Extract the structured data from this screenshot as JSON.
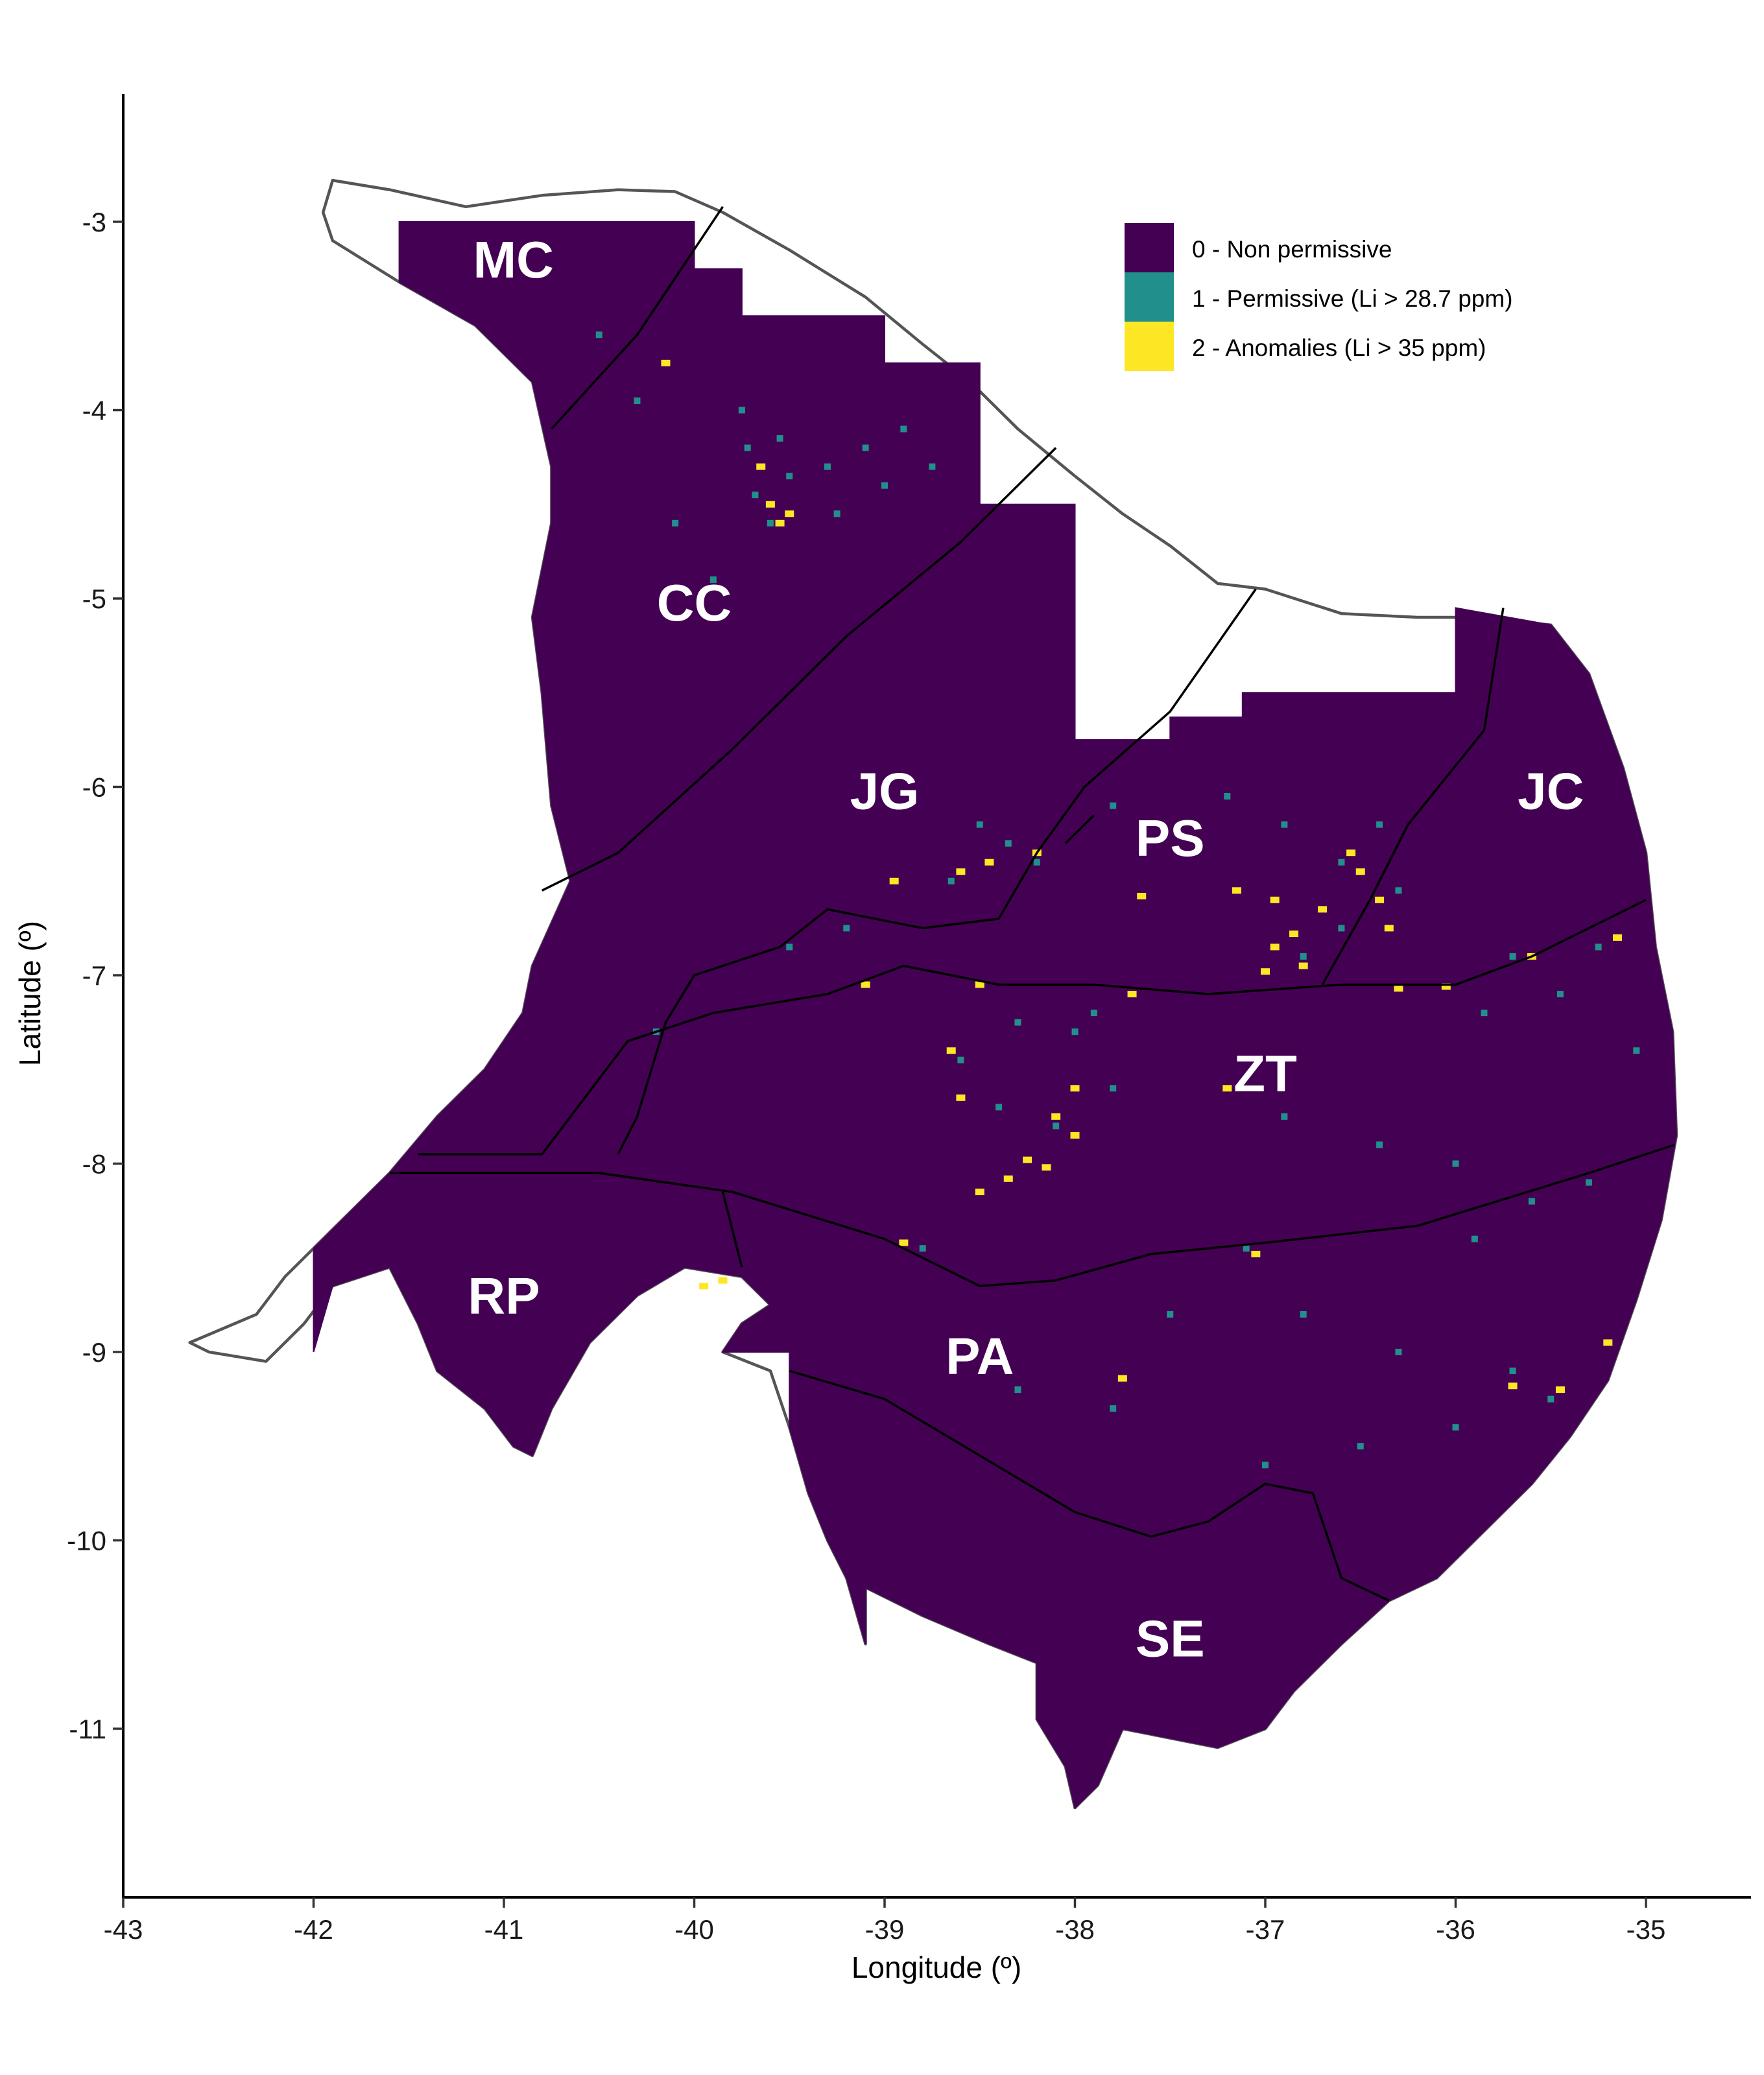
{
  "colors": {
    "non_permissive": "#440154",
    "permissive": "#21908C",
    "anomalies": "#FDE725",
    "coast_outline": "#555555",
    "boundary": "#000000"
  },
  "axes": {
    "x_title": "Longitude (º)",
    "y_title": "Latitude (º)",
    "x_ticks": [
      {
        "value": -43,
        "label": "-43"
      },
      {
        "value": -42,
        "label": "-42"
      },
      {
        "value": -41,
        "label": "-41"
      },
      {
        "value": -40,
        "label": "-40"
      },
      {
        "value": -39,
        "label": "-39"
      },
      {
        "value": -38,
        "label": "-38"
      },
      {
        "value": -37,
        "label": "-37"
      },
      {
        "value": -36,
        "label": "-36"
      },
      {
        "value": -35,
        "label": "-35"
      }
    ],
    "y_ticks": [
      {
        "value": -3,
        "label": "-3"
      },
      {
        "value": -4,
        "label": "-4"
      },
      {
        "value": -5,
        "label": "-5"
      },
      {
        "value": -6,
        "label": "-6"
      },
      {
        "value": -7,
        "label": "-7"
      },
      {
        "value": -8,
        "label": "-8"
      },
      {
        "value": -9,
        "label": "-9"
      },
      {
        "value": -10,
        "label": "-10"
      },
      {
        "value": -11,
        "label": "-11"
      }
    ],
    "x_range": [
      -43.1,
      -34.45
    ],
    "y_range": [
      -11.85,
      -2.35
    ]
  },
  "legend": {
    "placement": "top-right",
    "items": [
      {
        "label": "0 - Non permissive",
        "color": "#440154"
      },
      {
        "label": "1 - Permissive (Li > 28.7 ppm)",
        "color": "#21908C"
      },
      {
        "label": "2 - Anomalies (Li > 35 ppm)",
        "color": "#FDE725"
      }
    ]
  },
  "regions": [
    {
      "label": "MC",
      "lon": -40.95,
      "lat": -3.2
    },
    {
      "label": "CC",
      "lon": -40.0,
      "lat": -5.02
    },
    {
      "label": "JG",
      "lon": -39.0,
      "lat": -6.02
    },
    {
      "label": "PS",
      "lon": -37.5,
      "lat": -6.27
    },
    {
      "label": "JC",
      "lon": -35.5,
      "lat": -6.02
    },
    {
      "label": "ZT",
      "lon": -37.0,
      "lat": -7.52
    },
    {
      "label": "RP",
      "lon": -41.0,
      "lat": -8.7
    },
    {
      "label": "PA",
      "lon": -38.5,
      "lat": -9.02
    },
    {
      "label": "SE",
      "lon": -37.5,
      "lat": -10.52
    }
  ],
  "geometry": {
    "coast": [
      [
        -41.9,
        -2.78
      ],
      [
        -41.6,
        -2.83
      ],
      [
        -41.2,
        -2.92
      ],
      [
        -40.8,
        -2.86
      ],
      [
        -40.4,
        -2.83
      ],
      [
        -40.1,
        -2.84
      ],
      [
        -39.85,
        -2.95
      ],
      [
        -39.5,
        -3.15
      ],
      [
        -39.1,
        -3.4
      ],
      [
        -38.8,
        -3.65
      ],
      [
        -38.55,
        -3.85
      ],
      [
        -38.3,
        -4.1
      ],
      [
        -38.0,
        -4.35
      ],
      [
        -37.75,
        -4.55
      ],
      [
        -37.5,
        -4.72
      ],
      [
        -37.25,
        -4.92
      ],
      [
        -37.0,
        -4.95
      ],
      [
        -36.6,
        -5.08
      ],
      [
        -36.2,
        -5.1
      ],
      [
        -35.9,
        -5.1
      ],
      [
        -35.5,
        -5.14
      ],
      [
        -35.3,
        -5.4
      ],
      [
        -35.12,
        -5.9
      ],
      [
        -35.0,
        -6.35
      ],
      [
        -34.95,
        -6.85
      ],
      [
        -34.86,
        -7.3
      ],
      [
        -34.84,
        -7.85
      ],
      [
        -34.92,
        -8.3
      ],
      [
        -35.05,
        -8.72
      ],
      [
        -35.2,
        -9.15
      ],
      [
        -35.4,
        -9.45
      ],
      [
        -35.6,
        -9.7
      ],
      [
        -35.85,
        -9.95
      ],
      [
        -36.1,
        -10.2
      ],
      [
        -36.35,
        -10.32
      ],
      [
        -36.6,
        -10.55
      ],
      [
        -36.85,
        -10.8
      ],
      [
        -37.0,
        -11.0
      ],
      [
        -37.25,
        -11.1
      ],
      [
        -37.5,
        -11.05
      ],
      [
        -37.75,
        -11.0
      ],
      [
        -37.88,
        -11.3
      ],
      [
        -38.0,
        -11.42
      ],
      [
        -38.05,
        -11.2
      ],
      [
        -38.2,
        -10.95
      ],
      [
        -38.2,
        -10.65
      ],
      [
        -38.45,
        -10.55
      ],
      [
        -38.8,
        -10.4
      ],
      [
        -39.1,
        -10.25
      ],
      [
        -39.1,
        -10.55
      ],
      [
        -39.2,
        -10.2
      ],
      [
        -39.3,
        -10.0
      ],
      [
        -39.4,
        -9.75
      ],
      [
        -39.5,
        -9.4
      ],
      [
        -39.6,
        -9.1
      ],
      [
        -39.85,
        -9.0
      ],
      [
        -39.75,
        -8.85
      ],
      [
        -39.6,
        -8.75
      ],
      [
        -39.75,
        -8.6
      ],
      [
        -40.05,
        -8.55
      ],
      [
        -40.3,
        -8.7
      ],
      [
        -40.55,
        -8.95
      ],
      [
        -40.75,
        -9.3
      ],
      [
        -40.85,
        -9.55
      ],
      [
        -40.95,
        -9.5
      ],
      [
        -41.1,
        -9.3
      ],
      [
        -41.35,
        -9.1
      ],
      [
        -41.45,
        -8.85
      ],
      [
        -41.6,
        -8.55
      ],
      [
        -41.9,
        -8.65
      ],
      [
        -42.05,
        -8.85
      ],
      [
        -42.25,
        -9.05
      ],
      [
        -42.55,
        -9.0
      ],
      [
        -42.65,
        -8.95
      ],
      [
        -42.3,
        -8.8
      ],
      [
        -42.15,
        -8.6
      ],
      [
        -42.0,
        -8.45
      ],
      [
        -41.8,
        -8.25
      ],
      [
        -41.6,
        -8.05
      ],
      [
        -41.35,
        -7.75
      ],
      [
        -41.1,
        -7.5
      ],
      [
        -40.9,
        -7.2
      ],
      [
        -40.85,
        -6.95
      ],
      [
        -40.65,
        -6.5
      ],
      [
        -40.75,
        -6.1
      ],
      [
        -40.8,
        -5.5
      ],
      [
        -40.85,
        -5.1
      ],
      [
        -40.75,
        -4.6
      ],
      [
        -40.75,
        -4.3
      ],
      [
        -40.85,
        -3.85
      ],
      [
        -41.15,
        -3.55
      ],
      [
        -41.55,
        -3.32
      ],
      [
        -41.9,
        -3.1
      ],
      [
        -41.95,
        -2.95
      ]
    ],
    "mainland": [
      [
        -41.55,
        -3.0
      ],
      [
        -40.0,
        -3.0
      ],
      [
        -40.0,
        -3.25
      ],
      [
        -39.75,
        -3.25
      ],
      [
        -39.75,
        -3.5
      ],
      [
        -39.0,
        -3.5
      ],
      [
        -39.0,
        -3.75
      ],
      [
        -38.5,
        -3.75
      ],
      [
        -38.5,
        -4.5
      ],
      [
        -38.0,
        -4.5
      ],
      [
        -38.0,
        -5.75
      ],
      [
        -37.5,
        -5.75
      ],
      [
        -37.5,
        -5.63
      ],
      [
        -37.12,
        -5.63
      ],
      [
        -37.12,
        -5.5
      ],
      [
        -36.0,
        -5.5
      ],
      [
        -36.0,
        -5.05
      ],
      [
        -35.5,
        -5.14
      ],
      [
        -35.3,
        -5.4
      ],
      [
        -35.12,
        -5.9
      ],
      [
        -35.0,
        -6.35
      ],
      [
        -34.95,
        -6.85
      ],
      [
        -34.86,
        -7.3
      ],
      [
        -34.84,
        -7.85
      ],
      [
        -34.92,
        -8.3
      ],
      [
        -35.05,
        -8.72
      ],
      [
        -35.2,
        -9.15
      ],
      [
        -35.4,
        -9.45
      ],
      [
        -35.6,
        -9.7
      ],
      [
        -35.85,
        -9.95
      ],
      [
        -36.1,
        -10.2
      ],
      [
        -36.35,
        -10.32
      ],
      [
        -36.6,
        -10.55
      ],
      [
        -36.85,
        -10.8
      ],
      [
        -37.0,
        -11.0
      ],
      [
        -37.25,
        -11.1
      ],
      [
        -37.5,
        -11.05
      ],
      [
        -37.75,
        -11.0
      ],
      [
        -37.88,
        -11.3
      ],
      [
        -38.0,
        -11.42
      ],
      [
        -38.05,
        -11.2
      ],
      [
        -38.2,
        -10.95
      ],
      [
        -38.2,
        -10.65
      ],
      [
        -38.45,
        -10.55
      ],
      [
        -38.8,
        -10.4
      ],
      [
        -39.1,
        -10.25
      ],
      [
        -39.1,
        -10.55
      ],
      [
        -39.2,
        -10.2
      ],
      [
        -39.3,
        -10.0
      ],
      [
        -39.4,
        -9.75
      ],
      [
        -39.5,
        -9.4
      ],
      [
        -39.5,
        -9.0
      ],
      [
        -39.85,
        -9.0
      ],
      [
        -39.75,
        -8.85
      ],
      [
        -39.6,
        -8.75
      ],
      [
        -39.75,
        -8.6
      ],
      [
        -40.05,
        -8.55
      ],
      [
        -40.3,
        -8.7
      ],
      [
        -40.55,
        -8.95
      ],
      [
        -40.75,
        -9.3
      ],
      [
        -40.85,
        -9.55
      ],
      [
        -40.95,
        -9.5
      ],
      [
        -41.1,
        -9.3
      ],
      [
        -41.35,
        -9.1
      ],
      [
        -41.45,
        -8.85
      ],
      [
        -41.6,
        -8.55
      ],
      [
        -41.9,
        -8.65
      ],
      [
        -42.0,
        -9.0
      ],
      [
        -42.0,
        -8.45
      ],
      [
        -41.8,
        -8.25
      ],
      [
        -41.6,
        -8.05
      ],
      [
        -41.35,
        -7.75
      ],
      [
        -41.1,
        -7.5
      ],
      [
        -40.9,
        -7.2
      ],
      [
        -40.85,
        -6.95
      ],
      [
        -40.65,
        -6.5
      ],
      [
        -40.75,
        -6.1
      ],
      [
        -40.8,
        -5.5
      ],
      [
        -40.85,
        -5.1
      ],
      [
        -40.75,
        -4.6
      ],
      [
        -40.75,
        -4.3
      ],
      [
        -40.85,
        -3.85
      ],
      [
        -41.15,
        -3.55
      ],
      [
        -41.55,
        -3.32
      ]
    ],
    "boundaries": [
      [
        [
          -39.85,
          -2.92
        ],
        [
          -40.3,
          -3.6
        ],
        [
          -40.75,
          -4.1
        ]
      ],
      [
        [
          -38.1,
          -4.2
        ],
        [
          -38.6,
          -4.7
        ],
        [
          -39.2,
          -5.2
        ],
        [
          -39.8,
          -5.8
        ],
        [
          -40.4,
          -6.35
        ],
        [
          -40.8,
          -6.55
        ]
      ],
      [
        [
          -37.05,
          -4.95
        ],
        [
          -37.5,
          -5.6
        ],
        [
          -37.95,
          -6.0
        ],
        [
          -38.2,
          -6.35
        ],
        [
          -38.4,
          -6.7
        ],
        [
          -38.8,
          -6.75
        ],
        [
          -39.3,
          -6.65
        ],
        [
          -39.55,
          -6.85
        ],
        [
          -40.0,
          -7.0
        ],
        [
          -40.15,
          -7.25
        ],
        [
          -40.3,
          -7.75
        ],
        [
          -40.4,
          -7.95
        ]
      ],
      [
        [
          -41.45,
          -7.95
        ],
        [
          -40.8,
          -7.95
        ],
        [
          -40.35,
          -7.35
        ],
        [
          -39.9,
          -7.2
        ],
        [
          -39.3,
          -7.1
        ],
        [
          -38.9,
          -6.95
        ],
        [
          -38.4,
          -7.05
        ],
        [
          -37.9,
          -7.05
        ],
        [
          -37.3,
          -7.1
        ],
        [
          -36.6,
          -7.05
        ],
        [
          -36.0,
          -7.05
        ],
        [
          -35.6,
          -6.9
        ],
        [
          -35.0,
          -6.6
        ]
      ],
      [
        [
          -41.6,
          -8.05
        ],
        [
          -40.5,
          -8.05
        ],
        [
          -39.8,
          -8.15
        ],
        [
          -39.0,
          -8.4
        ],
        [
          -38.5,
          -8.65
        ],
        [
          -38.1,
          -8.62
        ],
        [
          -37.6,
          -8.48
        ],
        [
          -37.0,
          -8.42
        ],
        [
          -36.2,
          -8.33
        ],
        [
          -35.3,
          -8.05
        ],
        [
          -34.85,
          -7.9
        ]
      ],
      [
        [
          -39.85,
          -8.15
        ],
        [
          -39.75,
          -8.55
        ]
      ],
      [
        [
          -39.5,
          -9.1
        ],
        [
          -39.0,
          -9.25
        ],
        [
          -38.5,
          -9.55
        ],
        [
          -38.0,
          -9.85
        ],
        [
          -37.6,
          -9.98
        ],
        [
          -37.3,
          -9.9
        ],
        [
          -37.0,
          -9.7
        ],
        [
          -36.75,
          -9.75
        ],
        [
          -36.6,
          -10.2
        ],
        [
          -36.35,
          -10.32
        ]
      ],
      [
        [
          -35.75,
          -5.05
        ],
        [
          -35.85,
          -5.7
        ],
        [
          -36.25,
          -6.2
        ],
        [
          -36.45,
          -6.6
        ],
        [
          -36.7,
          -7.05
        ]
      ],
      [
        [
          -38.05,
          -6.3
        ],
        [
          -37.9,
          -6.15
        ]
      ]
    ],
    "clipped_notch": [
      [
        -40.8,
        -2.98
      ],
      [
        -40.6,
        -2.98
      ]
    ]
  },
  "cells": {
    "permissive": [
      [
        -39.75,
        -4.0
      ],
      [
        -39.72,
        -4.2
      ],
      [
        -39.68,
        -4.45
      ],
      [
        -39.6,
        -4.6
      ],
      [
        -39.55,
        -4.15
      ],
      [
        -39.5,
        -4.35
      ],
      [
        -39.3,
        -4.3
      ],
      [
        -39.25,
        -4.55
      ],
      [
        -39.1,
        -4.2
      ],
      [
        -39.0,
        -4.4
      ],
      [
        -38.9,
        -4.1
      ],
      [
        -38.75,
        -4.3
      ],
      [
        -40.5,
        -3.6
      ],
      [
        -40.3,
        -3.95
      ],
      [
        -40.1,
        -4.6
      ],
      [
        -39.9,
        -4.9
      ],
      [
        -38.5,
        -6.2
      ],
      [
        -38.35,
        -6.3
      ],
      [
        -38.2,
        -6.4
      ],
      [
        -38.65,
        -6.5
      ],
      [
        -37.8,
        -6.1
      ],
      [
        -37.2,
        -6.05
      ],
      [
        -36.9,
        -6.2
      ],
      [
        -36.6,
        -6.4
      ],
      [
        -36.4,
        -6.2
      ],
      [
        -36.3,
        -6.55
      ],
      [
        -36.6,
        -6.75
      ],
      [
        -36.8,
        -6.9
      ],
      [
        -35.7,
        -6.9
      ],
      [
        -35.45,
        -7.1
      ],
      [
        -35.85,
        -7.2
      ],
      [
        -38.3,
        -7.25
      ],
      [
        -38.0,
        -7.3
      ],
      [
        -37.9,
        -7.2
      ],
      [
        -38.6,
        -7.45
      ],
      [
        -38.4,
        -7.7
      ],
      [
        -37.8,
        -7.6
      ],
      [
        -38.1,
        -7.8
      ],
      [
        -36.9,
        -7.75
      ],
      [
        -36.4,
        -7.9
      ],
      [
        -36.0,
        -8.0
      ],
      [
        -35.6,
        -8.2
      ],
      [
        -35.3,
        -8.1
      ],
      [
        -35.9,
        -8.4
      ],
      [
        -37.1,
        -8.45
      ],
      [
        -36.8,
        -8.8
      ],
      [
        -37.5,
        -8.8
      ],
      [
        -36.3,
        -9.0
      ],
      [
        -35.7,
        -9.1
      ],
      [
        -35.5,
        -9.25
      ],
      [
        -36.0,
        -9.4
      ],
      [
        -36.5,
        -9.5
      ],
      [
        -37.0,
        -9.6
      ],
      [
        -37.8,
        -9.3
      ],
      [
        -38.3,
        -9.2
      ],
      [
        -38.8,
        -8.45
      ],
      [
        -39.2,
        -6.75
      ],
      [
        -39.5,
        -6.85
      ],
      [
        -40.2,
        -7.3
      ],
      [
        -35.25,
        -6.85
      ],
      [
        -35.05,
        -7.4
      ]
    ],
    "anomalies": [
      [
        -39.65,
        -4.3
      ],
      [
        -39.6,
        -4.5
      ],
      [
        -39.55,
        -4.6
      ],
      [
        -40.15,
        -3.75
      ],
      [
        -39.5,
        -4.55
      ],
      [
        -38.2,
        -6.35
      ],
      [
        -38.45,
        -6.4
      ],
      [
        -38.6,
        -6.45
      ],
      [
        -38.95,
        -6.5
      ],
      [
        -37.65,
        -6.58
      ],
      [
        -37.15,
        -6.55
      ],
      [
        -36.95,
        -6.6
      ],
      [
        -36.85,
        -6.78
      ],
      [
        -36.7,
        -6.65
      ],
      [
        -36.55,
        -6.35
      ],
      [
        -36.4,
        -6.6
      ],
      [
        -36.35,
        -6.75
      ],
      [
        -36.5,
        -6.45
      ],
      [
        -36.8,
        -6.95
      ],
      [
        -37.0,
        -6.98
      ],
      [
        -36.95,
        -6.85
      ],
      [
        -35.6,
        -6.9
      ],
      [
        -35.15,
        -6.8
      ],
      [
        -39.1,
        -7.05
      ],
      [
        -38.5,
        -7.05
      ],
      [
        -38.65,
        -7.4
      ],
      [
        -38.6,
        -7.65
      ],
      [
        -38.0,
        -7.6
      ],
      [
        -38.1,
        -7.75
      ],
      [
        -38.25,
        -7.98
      ],
      [
        -38.15,
        -8.02
      ],
      [
        -38.35,
        -8.08
      ],
      [
        -38.5,
        -8.15
      ],
      [
        -38.0,
        -7.85
      ],
      [
        -38.9,
        -8.42
      ],
      [
        -36.05,
        -7.06
      ],
      [
        -36.3,
        -7.07
      ],
      [
        -37.7,
        -7.1
      ],
      [
        -37.2,
        -7.6
      ],
      [
        -37.05,
        -8.48
      ],
      [
        -35.7,
        -9.18
      ],
      [
        -35.45,
        -9.2
      ],
      [
        -37.75,
        -9.14
      ],
      [
        -35.2,
        -8.95
      ],
      [
        -39.85,
        -8.62
      ],
      [
        -39.95,
        -8.65
      ]
    ]
  }
}
